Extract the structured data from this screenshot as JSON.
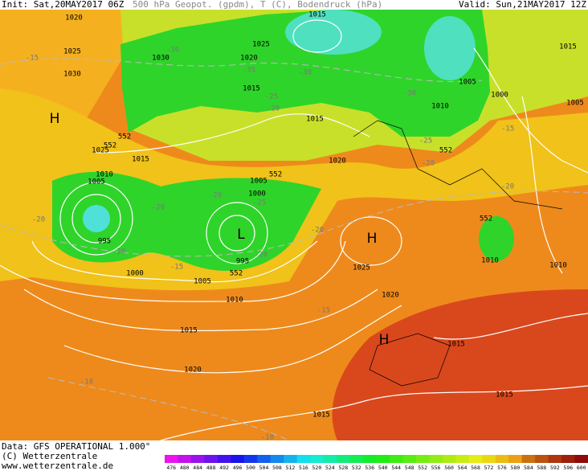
{
  "header": {
    "init": "Init: Sat,20MAY2017 06Z",
    "title": "500 hPa Geopot. (gpdm), T (C), Bodendruck (hPa)",
    "valid": "Valid: Sun,21MAY2017 12Z"
  },
  "footer": {
    "data": "Data: GFS OPERATIONAL 1.000°",
    "copyright": "(C) Wetterzentrale",
    "url": "www.wetterzentrale.de"
  },
  "colorbar": {
    "labels": [
      "476",
      "480",
      "484",
      "488",
      "492",
      "496",
      "500",
      "504",
      "508",
      "512",
      "516",
      "520",
      "524",
      "528",
      "532",
      "536",
      "540",
      "544",
      "548",
      "552",
      "556",
      "560",
      "564",
      "568",
      "572",
      "576",
      "580",
      "584",
      "588",
      "592",
      "596",
      "600"
    ]
  },
  "map": {
    "pressure_labels": [
      "1020",
      "1025",
      "1030",
      "1025",
      "1030",
      "1020",
      "1015",
      "1015",
      "1005",
      "1010",
      "1000",
      "1015",
      "1005",
      "1015",
      "1015",
      "1025",
      "1010",
      "1005",
      "1020",
      "1005",
      "1000",
      "995",
      "995",
      "1000",
      "1005",
      "1010",
      "1015",
      "1020",
      "1015",
      "1015",
      "1025",
      "1020",
      "1010",
      "1010",
      "1015"
    ],
    "temperature_labels": [
      "-15",
      "-30",
      "-35",
      "-25",
      "-20",
      "-30",
      "-30",
      "-25",
      "-20",
      "-15",
      "-20",
      "-20",
      "-20",
      "-20",
      "-25",
      "-20",
      "-20",
      "-15",
      "-20",
      "-15",
      "-10",
      "-10"
    ],
    "height_labels": [
      "552",
      "552",
      "552",
      "552",
      "552",
      "552"
    ],
    "centers": [
      "H",
      "L",
      "H",
      "H"
    ]
  }
}
